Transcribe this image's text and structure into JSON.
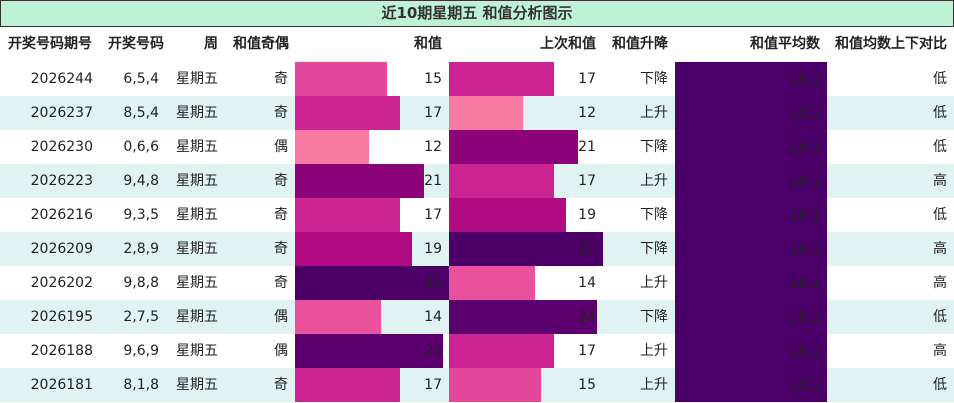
{
  "title": "近10期星期五 和值分析图示",
  "headers": [
    "开奖号码期号",
    "开奖号码",
    "周",
    "和值奇偶",
    "和值",
    "上次和值",
    "和值升降",
    "和值平均数",
    "和值均数上下对比"
  ],
  "avg_color": "#4a0068",
  "rows": [
    {
      "issue": "2026244",
      "numbers": "6,5,4",
      "weekday": "星期五",
      "parity": "奇",
      "sum": 15,
      "sum_color": "#e2479c",
      "prev_sum": 17,
      "prev_color": "#cb2391",
      "trend": "下降",
      "avg": 18.1,
      "compare": "低"
    },
    {
      "issue": "2026237",
      "numbers": "8,5,4",
      "weekday": "星期五",
      "parity": "奇",
      "sum": 17,
      "sum_color": "#cb2391",
      "prev_sum": 12,
      "prev_color": "#f67aa2",
      "trend": "上升",
      "avg": 18.1,
      "compare": "低"
    },
    {
      "issue": "2026230",
      "numbers": "0,6,6",
      "weekday": "星期五",
      "parity": "偶",
      "sum": 12,
      "sum_color": "#f67aa2",
      "prev_sum": 21,
      "prev_color": "#8c0278",
      "trend": "下降",
      "avg": 18.1,
      "compare": "低"
    },
    {
      "issue": "2026223",
      "numbers": "9,4,8",
      "weekday": "星期五",
      "parity": "奇",
      "sum": 21,
      "sum_color": "#8c0278",
      "prev_sum": 17,
      "prev_color": "#cb2391",
      "trend": "上升",
      "avg": 18.1,
      "compare": "高"
    },
    {
      "issue": "2026216",
      "numbers": "9,3,5",
      "weekday": "星期五",
      "parity": "奇",
      "sum": 17,
      "sum_color": "#cb2391",
      "prev_sum": 19,
      "prev_color": "#b00b83",
      "trend": "下降",
      "avg": 18.1,
      "compare": "低"
    },
    {
      "issue": "2026209",
      "numbers": "2,8,9",
      "weekday": "星期五",
      "parity": "奇",
      "sum": 19,
      "sum_color": "#b00b83",
      "prev_sum": 25,
      "prev_color": "#4c0067",
      "trend": "下降",
      "avg": 18.1,
      "compare": "高"
    },
    {
      "issue": "2026202",
      "numbers": "9,8,8",
      "weekday": "星期五",
      "parity": "奇",
      "sum": 25,
      "sum_color": "#4c0067",
      "prev_sum": 14,
      "prev_color": "#e9509d",
      "trend": "上升",
      "avg": 18.1,
      "compare": "高"
    },
    {
      "issue": "2026195",
      "numbers": "2,7,5",
      "weekday": "星期五",
      "parity": "偶",
      "sum": 14,
      "sum_color": "#e9509d",
      "prev_sum": 24,
      "prev_color": "#5c006f",
      "trend": "下降",
      "avg": 18.1,
      "compare": "低"
    },
    {
      "issue": "2026188",
      "numbers": "9,6,9",
      "weekday": "星期五",
      "parity": "偶",
      "sum": 24,
      "sum_color": "#5c006f",
      "prev_sum": 17,
      "prev_color": "#cb2391",
      "trend": "上升",
      "avg": 18.1,
      "compare": "高"
    },
    {
      "issue": "2026181",
      "numbers": "8,1,8",
      "weekday": "星期五",
      "parity": "奇",
      "sum": 17,
      "sum_color": "#cb2391",
      "prev_sum": 15,
      "prev_color": "#e2479c",
      "trend": "上升",
      "avg": 18.1,
      "compare": "低"
    }
  ]
}
